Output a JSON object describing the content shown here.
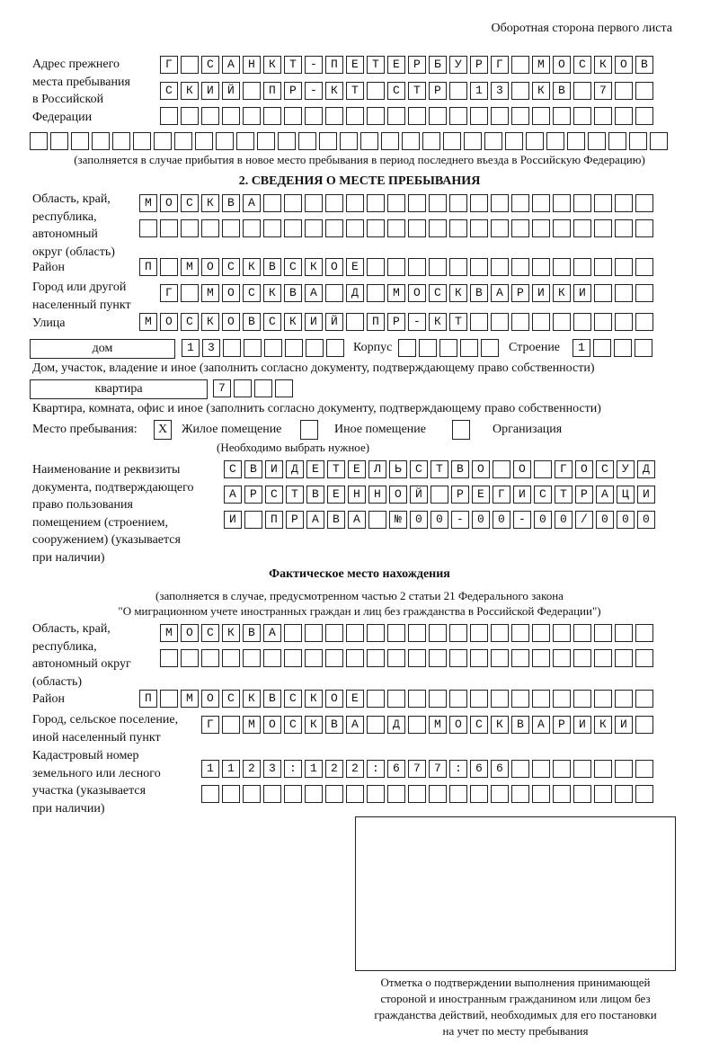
{
  "header": "Оборотная сторона первого листа",
  "prev_address": {
    "label": [
      "Адрес прежнего",
      "места пребывания",
      "в Российской",
      "Федерации"
    ],
    "rows": [
      "Г САНКТ-ПЕТЕРБУРГ МОСКОВ",
      "СКИЙ ПР-КТ СТР 13 КВ 7",
      "",
      ""
    ],
    "note": "(заполняется в случае прибытия в новое место пребывания в период последнего въезда в Российскую Федерацию)"
  },
  "section2": {
    "title": "2. СВЕДЕНИЯ О МЕСТЕ ПРЕБЫВАНИЯ",
    "region_label": [
      "Область, край,",
      "республика,",
      "автономный",
      "округ (область)"
    ],
    "region_rows": [
      "МОСКВА",
      ""
    ],
    "district_label": "Район",
    "district": "П МОСКВСКОЕ",
    "city_label": [
      "Город или другой",
      "населенный пункт"
    ],
    "city": "Г МОСКВА Д МОСКВАРИКИ",
    "street_label": "Улица",
    "street": "МОСКОВСКИЙ ПР-КТ",
    "house_type": "дом",
    "house": "13",
    "korpus_label": "Корпус",
    "korpus": "",
    "building_label": "Строение",
    "building": "1",
    "house_note": "Дом, участок, владение и иное (заполнить согласно документу, подтверждающему право собственности)",
    "flat_type": "квартира",
    "flat": "7",
    "flat_note": "Квартира, комната, офис и иное (заполнить согласно документу, подтверждающему право собственности)",
    "place_label": "Место пребывания:",
    "place_options": [
      {
        "label": "Жилое помещение",
        "mark": "X"
      },
      {
        "label": "Иное помещение",
        "mark": ""
      },
      {
        "label": "Организация",
        "mark": ""
      }
    ],
    "place_hint": "(Необходимо выбрать нужное)",
    "doc_label": [
      "Наименование и реквизиты",
      "документа, подтверждающего",
      "право пользования",
      "помещением (строением,",
      "сооружением) (указывается",
      "при наличии)"
    ],
    "doc_rows": [
      "СВИДЕТЕЛЬСТВО О ГОСУД",
      "АРСТВЕННОЙ РЕГИСТРАЦИ",
      "И ПРАВА №00-00-00/000"
    ]
  },
  "actual": {
    "title": "Фактическое место нахождения",
    "note": [
      "(заполняется в случае, предусмотренном частью 2 статьи 21 Федерального закона",
      "\"О миграционном учете иностранных граждан и лиц без гражданства в Российской Федерации\")"
    ],
    "region_label": [
      "Область, край,",
      "республика,",
      "автономный округ",
      "(область)"
    ],
    "region_rows": [
      "МОСКВА",
      ""
    ],
    "district_label": "Район",
    "district": "П МОСКВСКОЕ",
    "city_label": [
      "Город, сельское поселение,",
      "иной населенный пункт"
    ],
    "city": "Г МОСКВА Д МОСКВАРИКИ",
    "cadastral_label": [
      "Кадастровый номер",
      "земельного или лесного",
      "участка (указывается",
      "при наличии)"
    ],
    "cadastral_rows": [
      "1123:122:677:66",
      ""
    ]
  },
  "stamp_caption": [
    "Отметка о подтверждении выполнения принимающей",
    "стороной и иностранным гражданином или лицом без",
    "гражданства действий, необходимых для его постановки",
    "на учет по месту пребывания"
  ]
}
